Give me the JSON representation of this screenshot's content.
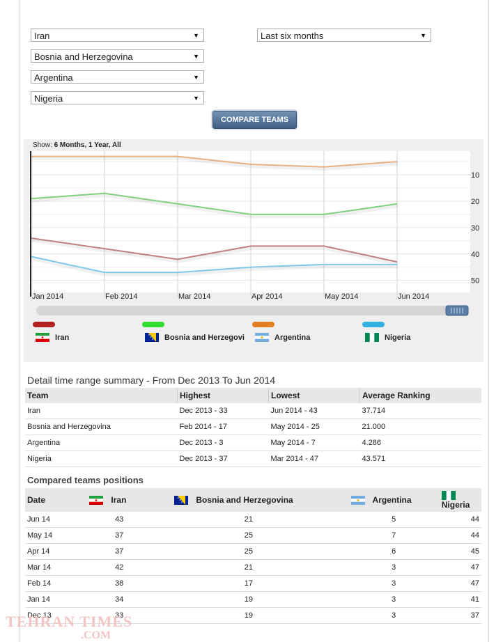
{
  "filters": {
    "team1": "Iran",
    "team2": "Bosnia and Herzegovina",
    "team3": "Argentina",
    "team4": "Nigeria",
    "period": "Last six months",
    "compare_label": "COMPARE TEAMS"
  },
  "chart": {
    "show_prefix": "Show:",
    "show_options": "6 Months, 1 Year, All"
  },
  "chart_data": {
    "type": "line",
    "x": [
      "Jan 2014",
      "Feb 2014",
      "Mar 2014",
      "Apr 2014",
      "May 2014",
      "Jun 2014"
    ],
    "y_ticks": [
      "10",
      "20",
      "30",
      "40",
      "50"
    ],
    "ylim": [
      1,
      53
    ],
    "y_inverted": true,
    "series": [
      {
        "name": "Iran",
        "color": "#c08080",
        "values": [
          34,
          38,
          42,
          37,
          37,
          43
        ]
      },
      {
        "name": "Bosnia and Herzegovi",
        "color": "#80d080",
        "values": [
          19,
          17,
          21,
          25,
          25,
          21
        ]
      },
      {
        "name": "Argentina",
        "color": "#e8b080",
        "values": [
          3,
          3,
          3,
          6,
          7,
          5
        ]
      },
      {
        "name": "Nigeria",
        "color": "#80c8e8",
        "values": [
          41,
          47,
          47,
          45,
          44,
          44
        ]
      }
    ],
    "legend_colors": [
      "#b22222",
      "#33dd33",
      "#e08020",
      "#33b0e0"
    ]
  },
  "summary": {
    "title": "Detail time range summary - From Dec 2013 To Jun 2014",
    "headers": [
      "Team",
      "Highest",
      "Lowest",
      "Average Ranking"
    ],
    "rows": [
      [
        "Iran",
        "Dec 2013 - 33",
        "Jun 2014 - 43",
        "37.714"
      ],
      [
        "Bosnia and Herzegovina",
        "Feb 2014 - 17",
        "May 2014 - 25",
        "21.000"
      ],
      [
        "Argentina",
        "Dec 2013 - 3",
        "May 2014 - 7",
        "4.286"
      ],
      [
        "Nigeria",
        "Dec 2013 - 37",
        "Mar 2014 - 47",
        "43.571"
      ]
    ]
  },
  "positions": {
    "title": "Compared teams positions",
    "headers": [
      "Date",
      "Iran",
      "Bosnia and Herzegovina",
      "Argentina",
      "Nigeria"
    ],
    "rows": [
      [
        "Jun 14",
        "43",
        "21",
        "5",
        "44"
      ],
      [
        "May 14",
        "37",
        "25",
        "7",
        "44"
      ],
      [
        "Apr 14",
        "37",
        "25",
        "6",
        "45"
      ],
      [
        "Mar 14",
        "42",
        "21",
        "3",
        "47"
      ],
      [
        "Feb 14",
        "38",
        "17",
        "3",
        "47"
      ],
      [
        "Jan 14",
        "34",
        "19",
        "3",
        "41"
      ],
      [
        "Dec 13",
        "33",
        "19",
        "3",
        "37"
      ]
    ]
  },
  "watermark": {
    "line1": "TEHRAN TIMES",
    "line2": ".COM"
  }
}
